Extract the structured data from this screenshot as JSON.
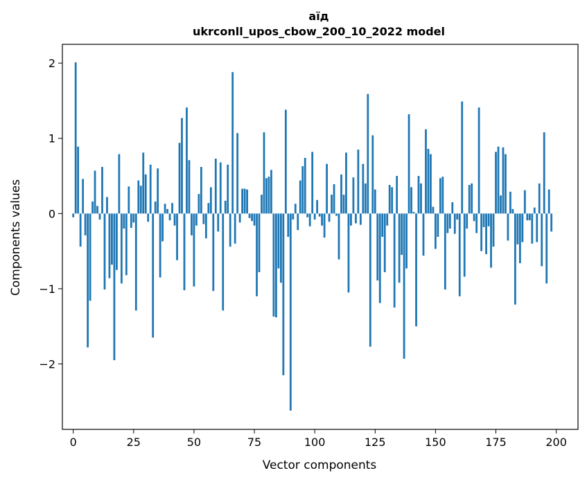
{
  "chart_data": {
    "type": "bar",
    "title": "аїд",
    "subtitle": "ukrconll_upos_cbow_200_10_2022 model",
    "xlabel": "Vector components",
    "ylabel": "Components values",
    "xlim": [
      -4.5,
      209
    ],
    "ylim": [
      -2.87,
      2.25
    ],
    "xticks": [
      0,
      25,
      50,
      75,
      100,
      125,
      150,
      175,
      200
    ],
    "yticks": [
      -2,
      -1,
      0,
      1,
      2
    ],
    "ytick_labels": [
      "−2",
      "−1",
      "0",
      "1",
      "2"
    ],
    "bar_color": "#1f77b4",
    "grid": false,
    "legend": "none",
    "values": [
      -0.05,
      2.01,
      0.89,
      -0.44,
      0.46,
      -0.29,
      -1.78,
      -1.16,
      0.16,
      0.57,
      0.1,
      -0.08,
      0.62,
      -1.01,
      0.22,
      -0.86,
      -0.68,
      -1.95,
      -0.75,
      0.79,
      -0.93,
      -0.2,
      -0.82,
      0.36,
      -0.19,
      -0.12,
      -1.29,
      0.44,
      0.37,
      0.81,
      0.52,
      -0.11,
      0.65,
      -1.65,
      0.16,
      0.6,
      -0.85,
      -0.37,
      0.13,
      0.06,
      -0.09,
      0.14,
      -0.16,
      -0.62,
      0.94,
      1.27,
      -1.02,
      1.41,
      0.71,
      -0.29,
      -0.97,
      -0.16,
      0.26,
      0.62,
      -0.14,
      -0.33,
      0.14,
      0.35,
      -1.03,
      0.73,
      -0.24,
      0.68,
      -1.29,
      0.17,
      0.65,
      -0.44,
      1.88,
      -0.4,
      1.07,
      -0.12,
      0.33,
      0.33,
      0.32,
      -0.06,
      -0.1,
      -0.16,
      -1.1,
      -0.78,
      0.25,
      1.08,
      0.47,
      0.49,
      0.58,
      -1.37,
      -1.38,
      -0.73,
      -0.92,
      -2.15,
      1.38,
      -0.31,
      -2.62,
      -0.08,
      0.13,
      -0.22,
      0.44,
      0.63,
      0.74,
      -0.05,
      -0.17,
      0.82,
      -0.08,
      0.18,
      -0.04,
      -0.16,
      -0.32,
      0.66,
      -0.11,
      0.25,
      0.39,
      -0.03,
      -0.61,
      0.52,
      0.25,
      0.81,
      -1.05,
      -0.16,
      0.48,
      -0.13,
      0.85,
      -0.15,
      0.66,
      0.4,
      1.59,
      -1.77,
      1.04,
      0.32,
      -0.89,
      -1.19,
      -0.31,
      -0.78,
      -0.16,
      0.38,
      0.35,
      -1.25,
      0.5,
      -0.92,
      -0.55,
      -1.93,
      -0.73,
      1.32,
      0.35,
      0.02,
      -1.5,
      0.5,
      0.4,
      -0.56,
      1.12,
      0.86,
      0.79,
      0.09,
      -0.47,
      -0.31,
      0.47,
      0.49,
      -1.01,
      -0.26,
      -0.2,
      0.15,
      -0.27,
      -0.08,
      -1.1,
      1.49,
      -0.84,
      -0.2,
      0.38,
      0.4,
      -0.1,
      -0.26,
      1.41,
      -0.5,
      -0.18,
      -0.54,
      -0.17,
      -0.72,
      -0.44,
      0.82,
      0.89,
      0.24,
      0.88,
      0.79,
      -0.36,
      0.29,
      0.06,
      -1.21,
      -0.41,
      -0.66,
      -0.38,
      0.31,
      -0.09,
      -0.09,
      -0.4,
      0.08,
      -0.38,
      0.4,
      -0.7,
      1.08,
      -0.93,
      0.32,
      -0.24
    ]
  }
}
